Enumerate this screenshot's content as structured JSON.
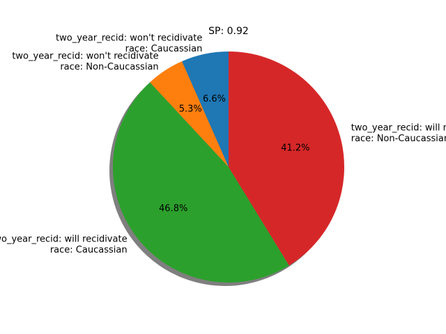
{
  "chart_data": {
    "type": "pie",
    "title": "SP: 0.92",
    "slices": [
      {
        "label_line1": "two_year_recid: won't recidivate",
        "label_line2": "race: Caucassian",
        "value": 6.6,
        "pct_label": "6.6%",
        "color": "#1f77b4"
      },
      {
        "label_line1": "two_year_recid: won't recidivate",
        "label_line2": "race: Non-Caucassian",
        "value": 5.3,
        "pct_label": "5.3%",
        "color": "#ff7f0e"
      },
      {
        "label_line1": "two_year_recid: will recidivate",
        "label_line2": "race: Caucassian",
        "value": 46.8,
        "pct_label": "46.8%",
        "color": "#2ca02c"
      },
      {
        "label_line1": "two_year_recid: will recidivate",
        "label_line2": "race: Non-Caucassian",
        "value": 41.2,
        "pct_label": "41.2%",
        "color": "#d62728"
      }
    ],
    "start_angle": 90,
    "direction": "counterclockwise",
    "shadow": true
  }
}
